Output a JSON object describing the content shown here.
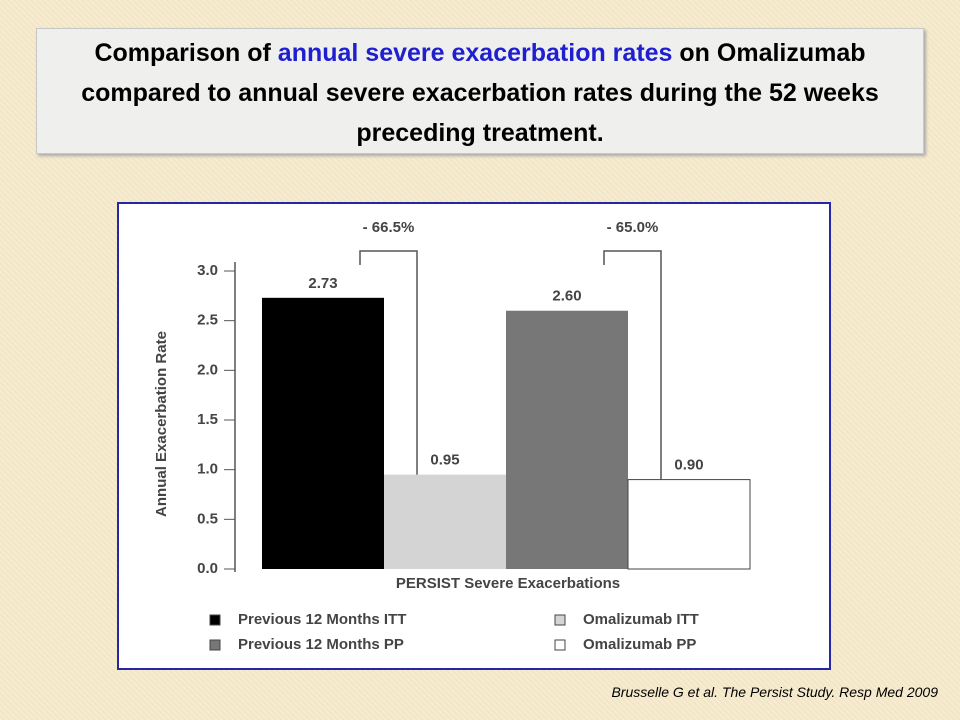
{
  "chart_data": {
    "type": "bar",
    "title": [
      "Comparison of",
      "annual severe exacerbation rates",
      "on Omalizumab compared to annual severe exacerbation rates during the 52 weeks preceding treatment."
    ],
    "y_label": "Annual Exacerbation Rate",
    "x_label": "PERSIST Severe Exacerbations",
    "categories": [
      "PERSIST Severe Exacerbations"
    ],
    "series": [
      {
        "name": "Previous 12 Months ITT",
        "color": "#000000",
        "values": [
          2.73
        ],
        "value_labels": [
          "2.73"
        ]
      },
      {
        "name": "Omalizumab ITT",
        "color": "#d4d4d4",
        "values": [
          0.95
        ],
        "value_labels": [
          "0.95"
        ]
      },
      {
        "name": "Previous 12 Months PP",
        "color": "#777777",
        "values": [
          2.6
        ],
        "value_labels": [
          "2.60"
        ]
      },
      {
        "name": "Omalizumab PP",
        "color": "#ffffff",
        "values": [
          0.9
        ],
        "value_labels": [
          "0.90"
        ]
      }
    ],
    "annotations": [
      "- 66.5%",
      "- 65.0%"
    ],
    "ylim": [
      0,
      3
    ],
    "yticks": [
      {
        "value": 0,
        "label": "0.0"
      },
      0.5,
      {
        "value": 1,
        "label": "1.0"
      },
      1.5,
      {
        "value": 2,
        "label": "2.0"
      },
      2.5,
      {
        "value": 3,
        "label": "3.0"
      }
    ],
    "grid": false
  },
  "citation": "Brusselle G et al. The Persist Study. Resp Med 2009"
}
